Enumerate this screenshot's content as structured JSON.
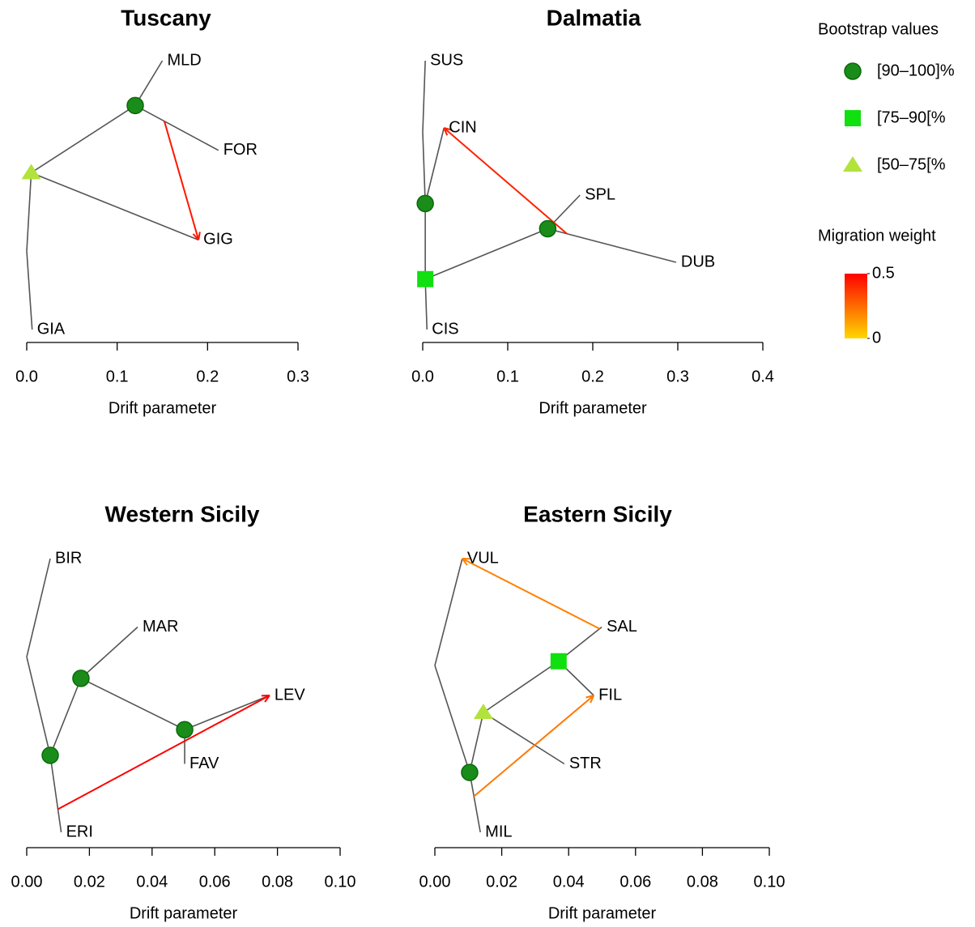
{
  "chart_data": [
    {
      "type": "tree",
      "title": "Tuscany",
      "xlabel": "Drift parameter",
      "xlim": [
        0,
        0.3
      ],
      "xticks": [
        {
          "value": 0,
          "label": "0.0"
        },
        0.1,
        0.2,
        0.3
      ],
      "nodes": [
        {
          "name": "MLD",
          "drift": 0.15,
          "parent": 4
        },
        {
          "name": "FOR",
          "drift": 0.212,
          "parent": 4
        },
        {
          "name": "GIG",
          "drift": 0.19,
          "parent": 5
        },
        {
          "name": "GIA",
          "drift": 0.006,
          "parent": 6
        },
        {
          "drift": 0.12,
          "parent": 5,
          "support": 0
        },
        {
          "drift": 0.005,
          "parent": 6,
          "support": 2
        },
        {
          "drift": 0
        }
      ],
      "migrations": [
        {
          "from": 1,
          "to": 2,
          "weight": 0.45
        }
      ]
    },
    {
      "type": "tree",
      "title": "Dalmatia",
      "xlabel": "Drift parameter",
      "xlim": [
        0,
        0.4
      ],
      "xticks": [
        {
          "value": 0,
          "label": "0.0"
        },
        0.1,
        0.2,
        0.3,
        0.4
      ],
      "nodes": [
        {
          "name": "SUS",
          "drift": 0.003,
          "parent": 8
        },
        {
          "name": "CIN",
          "drift": 0.025,
          "parent": 7
        },
        {
          "name": "SPL",
          "drift": 0.185,
          "parent": 5
        },
        {
          "name": "DUB",
          "drift": 0.298,
          "parent": 5
        },
        {
          "name": "CIS",
          "drift": 0.005,
          "parent": 6
        },
        {
          "drift": 0.147,
          "parent": 6,
          "support": 0
        },
        {
          "drift": 0.003,
          "parent": 7,
          "support": 1
        },
        {
          "drift": 0.003,
          "parent": 8,
          "support": 0
        },
        {
          "drift": 0
        }
      ],
      "migrations": [
        {
          "from": 3,
          "to": 1,
          "weight": 0.42
        }
      ]
    },
    {
      "type": "tree",
      "title": "Western Sicily",
      "xlabel": "Drift parameter",
      "xlim": [
        0,
        0.1
      ],
      "xticks": [
        {
          "value": 0,
          "label": "0.00"
        },
        0.02,
        0.04,
        0.06,
        0.08,
        {
          "value": 0.1,
          "label": "0.10"
        }
      ],
      "nodes": [
        {
          "name": "BIR",
          "drift": 0.0075,
          "parent": 8
        },
        {
          "name": "MAR",
          "drift": 0.0354,
          "parent": 6
        },
        {
          "name": "LEV",
          "drift": 0.0775,
          "parent": 5
        },
        {
          "name": "FAV",
          "drift": 0.0504,
          "parent": 5
        },
        {
          "name": "ERI",
          "drift": 0.011,
          "parent": 7
        },
        {
          "drift": 0.0504,
          "parent": 6,
          "support": 0
        },
        {
          "drift": 0.0173,
          "parent": 7,
          "support": 0
        },
        {
          "drift": 0.0075,
          "parent": 8,
          "support": 0
        },
        {
          "drift": 0
        }
      ],
      "migrations": [
        {
          "from": 4,
          "to": 2,
          "weight": 0.5
        }
      ]
    },
    {
      "type": "tree",
      "title": "Eastern Sicily",
      "xlabel": "Drift parameter",
      "xlim": [
        0,
        0.1
      ],
      "xticks": [
        {
          "value": 0,
          "label": "0.00"
        },
        0.02,
        0.04,
        0.06,
        0.08,
        {
          "value": 0.1,
          "label": "0.10"
        }
      ],
      "nodes": [
        {
          "name": "VUL",
          "drift": 0.0082,
          "parent": 8
        },
        {
          "name": "SAL",
          "drift": 0.0499,
          "parent": 5
        },
        {
          "name": "FIL",
          "drift": 0.0475,
          "parent": 5
        },
        {
          "name": "STR",
          "drift": 0.0387,
          "parent": 6
        },
        {
          "name": "MIL",
          "drift": 0.0136,
          "parent": 7
        },
        {
          "drift": 0.037,
          "parent": 6,
          "support": 1
        },
        {
          "drift": 0.0145,
          "parent": 7,
          "support": 2
        },
        {
          "drift": 0.0104,
          "parent": 8,
          "support": 0
        },
        {
          "drift": 0
        }
      ],
      "migrations": [
        {
          "from": 1,
          "to": 0,
          "weight": 0.2
        },
        {
          "from": 4,
          "to": 2,
          "weight": 0.22
        }
      ]
    }
  ],
  "legend": {
    "title": "Bootstrap values",
    "items": [
      {
        "label": "[90–100]%",
        "shape": "circle",
        "color": "#1a8c1a"
      },
      {
        "label": "[75–90[%",
        "shape": "square",
        "color": "#10e010"
      },
      {
        "label": "[50–75[%",
        "shape": "triangle",
        "color": "#b2e23c"
      }
    ],
    "weight_title": "Migration weight",
    "weight_range": [
      0,
      0.5
    ],
    "weight_colors": [
      "#ffd700",
      "#ff0000"
    ],
    "weight_ticks": [
      0.5,
      0
    ]
  }
}
